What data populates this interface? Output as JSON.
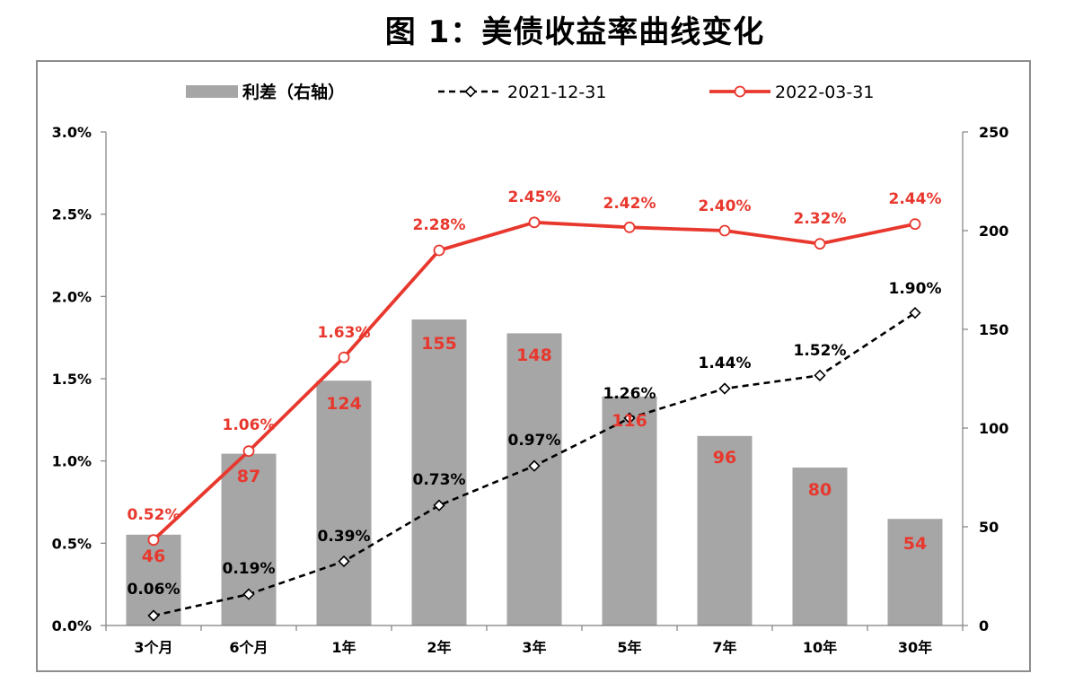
{
  "chart_data": {
    "type": "bar",
    "title": "图 1：美债收益率曲线变化",
    "categories": [
      "3个月",
      "6个月",
      "1年",
      "2年",
      "3年",
      "5年",
      "7年",
      "10年",
      "30年"
    ],
    "series": [
      {
        "name": "利差（右轴）",
        "type": "bar",
        "axis": "right",
        "values": [
          46,
          87,
          124,
          155,
          148,
          116,
          96,
          80,
          54
        ],
        "labels": [
          "46",
          "87",
          "124",
          "155",
          "148",
          "116",
          "96",
          "80",
          "54"
        ],
        "color": "#a6a6a6",
        "label_color": "#e8382e"
      },
      {
        "name": "2021-12-31",
        "type": "line",
        "axis": "left",
        "values": [
          0.06,
          0.19,
          0.39,
          0.73,
          0.97,
          1.26,
          1.44,
          1.52,
          1.9
        ],
        "labels": [
          "0.06%",
          "0.19%",
          "0.39%",
          "0.73%",
          "0.97%",
          "1.26%",
          "1.44%",
          "1.52%",
          "1.90%"
        ],
        "color": "#000000",
        "style": "dashed",
        "marker": "diamond"
      },
      {
        "name": "2022-03-31",
        "type": "line",
        "axis": "left",
        "values": [
          0.52,
          1.06,
          1.63,
          2.28,
          2.45,
          2.42,
          2.4,
          2.32,
          2.44
        ],
        "labels": [
          "0.52%",
          "1.06%",
          "1.63%",
          "2.28%",
          "2.45%",
          "2.42%",
          "2.40%",
          "2.32%",
          "2.44%"
        ],
        "color": "#e8382e",
        "style": "solid",
        "marker": "circle"
      }
    ],
    "y_left": {
      "range": [
        0,
        3.0
      ],
      "ticks": [
        0,
        0.5,
        1.0,
        1.5,
        2.0,
        2.5,
        3.0
      ],
      "tick_labels": [
        "0.0%",
        "0.5%",
        "1.0%",
        "1.5%",
        "2.0%",
        "2.5%",
        "3.0%"
      ]
    },
    "y_right": {
      "range": [
        0,
        250
      ],
      "ticks": [
        0,
        50,
        100,
        150,
        200,
        250
      ],
      "tick_labels": [
        "0",
        "50",
        "100",
        "150",
        "200",
        "250"
      ]
    },
    "grid": false,
    "legend_position": "top"
  }
}
